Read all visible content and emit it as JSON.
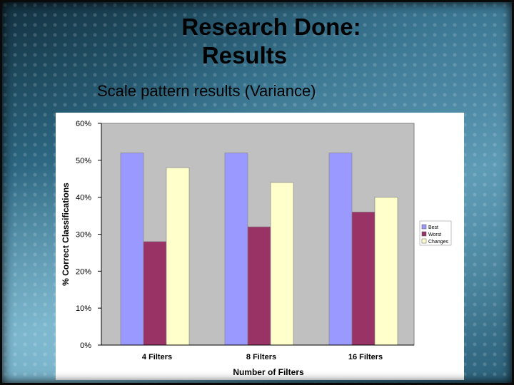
{
  "slide": {
    "title_line1": "Research Done:",
    "title_line2": "Results",
    "subtitle": "Scale pattern results (Variance)"
  },
  "chart_data": {
    "type": "bar",
    "categories": [
      "4 Filters",
      "8 Filters",
      "16 Filters"
    ],
    "series": [
      {
        "name": "Best",
        "color": "#9999ff",
        "values": [
          0.52,
          0.52,
          0.52
        ]
      },
      {
        "name": "Worst",
        "color": "#993366",
        "values": [
          0.28,
          0.32,
          0.36
        ]
      },
      {
        "name": "Changes",
        "color": "#ffffcc",
        "values": [
          0.48,
          0.44,
          0.4
        ]
      }
    ],
    "xlabel": "Number of Filters",
    "ylabel": "% Correct Classifications",
    "ylim": [
      0,
      0.6
    ],
    "yticks": [
      0,
      0.1,
      0.2,
      0.3,
      0.4,
      0.5,
      0.6
    ],
    "ytick_labels": [
      "0%",
      "10%",
      "20%",
      "30%",
      "40%",
      "50%",
      "60%"
    ],
    "plot_background": "#c0c0c0",
    "grid": false,
    "legend_position": "right",
    "legend_labels": [
      "Best",
      "Worst",
      "Changes"
    ]
  }
}
